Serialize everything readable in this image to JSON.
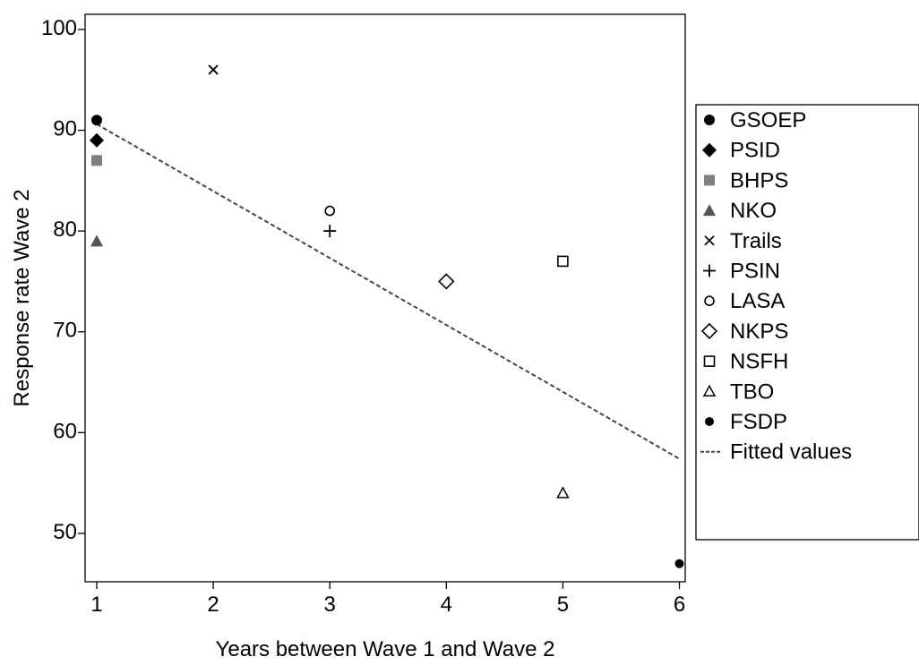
{
  "chart_data": {
    "type": "scatter",
    "xlabel": "Years between Wave 1 and Wave 2",
    "ylabel": "Response rate Wave 2",
    "xlim": [
      0.9,
      6.05
    ],
    "ylim": [
      45.2,
      101.5
    ],
    "xticks": [
      1,
      2,
      3,
      4,
      5,
      6
    ],
    "yticks": [
      50,
      60,
      70,
      80,
      90,
      100
    ],
    "grid": false,
    "legend_position": "right",
    "series": [
      {
        "name": "GSOEP",
        "marker": "circle-filled",
        "color": "#000000",
        "points": [
          {
            "x": 1,
            "y": 91
          }
        ]
      },
      {
        "name": "PSID",
        "marker": "diamond-filled",
        "color": "#000000",
        "points": [
          {
            "x": 1,
            "y": 89
          }
        ]
      },
      {
        "name": "BHPS",
        "marker": "square-filled",
        "color": "#808080",
        "points": [
          {
            "x": 1,
            "y": 87
          }
        ]
      },
      {
        "name": "NKO",
        "marker": "triangle-filled",
        "color": "#555555",
        "points": [
          {
            "x": 1,
            "y": 79
          }
        ]
      },
      {
        "name": "Trails",
        "marker": "x",
        "color": "#000000",
        "points": [
          {
            "x": 2,
            "y": 96
          }
        ]
      },
      {
        "name": "PSIN",
        "marker": "plus",
        "color": "#000000",
        "points": [
          {
            "x": 3,
            "y": 80
          }
        ]
      },
      {
        "name": "LASA",
        "marker": "circle-open",
        "color": "#000000",
        "points": [
          {
            "x": 3,
            "y": 82
          }
        ]
      },
      {
        "name": "NKPS",
        "marker": "diamond-open",
        "color": "#000000",
        "points": [
          {
            "x": 4,
            "y": 75
          }
        ]
      },
      {
        "name": "NSFH",
        "marker": "square-open",
        "color": "#000000",
        "points": [
          {
            "x": 5,
            "y": 77
          }
        ]
      },
      {
        "name": "TBO",
        "marker": "triangle-open",
        "color": "#000000",
        "points": [
          {
            "x": 5,
            "y": 54
          }
        ]
      },
      {
        "name": "FSDP",
        "marker": "dot-small",
        "color": "#000000",
        "points": [
          {
            "x": 6,
            "y": 47
          }
        ]
      }
    ],
    "fitted_line": {
      "name": "Fitted values",
      "style": "dashed",
      "color": "#444444",
      "x": [
        1,
        6
      ],
      "y": [
        90.6,
        57.4
      ]
    }
  }
}
